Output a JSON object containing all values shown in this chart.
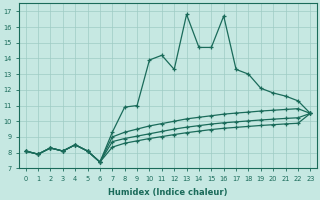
{
  "xlabel": "Humidex (Indice chaleur)",
  "background_color": "#c6e8e2",
  "grid_color": "#9eccc4",
  "line_color": "#1a6b5a",
  "xlim": [
    -0.5,
    23.5
  ],
  "ylim": [
    7,
    17.5
  ],
  "xticks": [
    0,
    1,
    2,
    3,
    4,
    5,
    6,
    7,
    8,
    9,
    10,
    11,
    12,
    13,
    14,
    15,
    16,
    17,
    18,
    19,
    20,
    21,
    22,
    23
  ],
  "yticks": [
    7,
    8,
    9,
    10,
    11,
    12,
    13,
    14,
    15,
    16,
    17
  ],
  "series1_x": [
    0,
    1,
    2,
    3,
    4,
    5,
    6,
    7,
    8,
    9,
    10,
    11,
    12,
    13,
    14,
    15,
    16,
    17,
    18,
    19,
    20,
    21,
    22,
    23
  ],
  "series1_y": [
    8.1,
    7.9,
    8.3,
    8.1,
    8.5,
    8.1,
    7.4,
    9.3,
    10.9,
    11.0,
    13.9,
    14.2,
    13.3,
    16.8,
    14.7,
    14.7,
    16.7,
    13.3,
    13.0,
    12.1,
    11.8,
    11.6,
    11.3,
    10.5
  ],
  "series2_x": [
    0,
    1,
    2,
    3,
    4,
    5,
    6,
    7,
    8,
    9,
    10,
    11,
    12,
    13,
    14,
    15,
    16,
    17,
    18,
    19,
    20,
    21,
    22,
    23
  ],
  "series2_y": [
    8.1,
    7.9,
    8.3,
    8.1,
    8.5,
    8.1,
    7.4,
    9.0,
    9.3,
    9.5,
    9.7,
    9.85,
    10.0,
    10.15,
    10.25,
    10.35,
    10.45,
    10.52,
    10.58,
    10.65,
    10.7,
    10.75,
    10.8,
    10.5
  ],
  "series3_x": [
    0,
    1,
    2,
    3,
    4,
    5,
    6,
    7,
    8,
    9,
    10,
    11,
    12,
    13,
    14,
    15,
    16,
    17,
    18,
    19,
    20,
    21,
    22,
    23
  ],
  "series3_y": [
    8.1,
    7.9,
    8.3,
    8.1,
    8.5,
    8.1,
    7.4,
    8.7,
    8.9,
    9.05,
    9.2,
    9.35,
    9.5,
    9.62,
    9.72,
    9.82,
    9.9,
    9.96,
    10.02,
    10.08,
    10.13,
    10.18,
    10.22,
    10.5
  ],
  "series4_x": [
    0,
    1,
    2,
    3,
    4,
    5,
    6,
    7,
    8,
    9,
    10,
    11,
    12,
    13,
    14,
    15,
    16,
    17,
    18,
    19,
    20,
    21,
    22,
    23
  ],
  "series4_y": [
    8.1,
    7.9,
    8.3,
    8.1,
    8.5,
    8.1,
    7.4,
    8.35,
    8.6,
    8.75,
    8.9,
    9.02,
    9.15,
    9.27,
    9.37,
    9.47,
    9.55,
    9.61,
    9.67,
    9.73,
    9.78,
    9.83,
    9.87,
    10.5
  ]
}
